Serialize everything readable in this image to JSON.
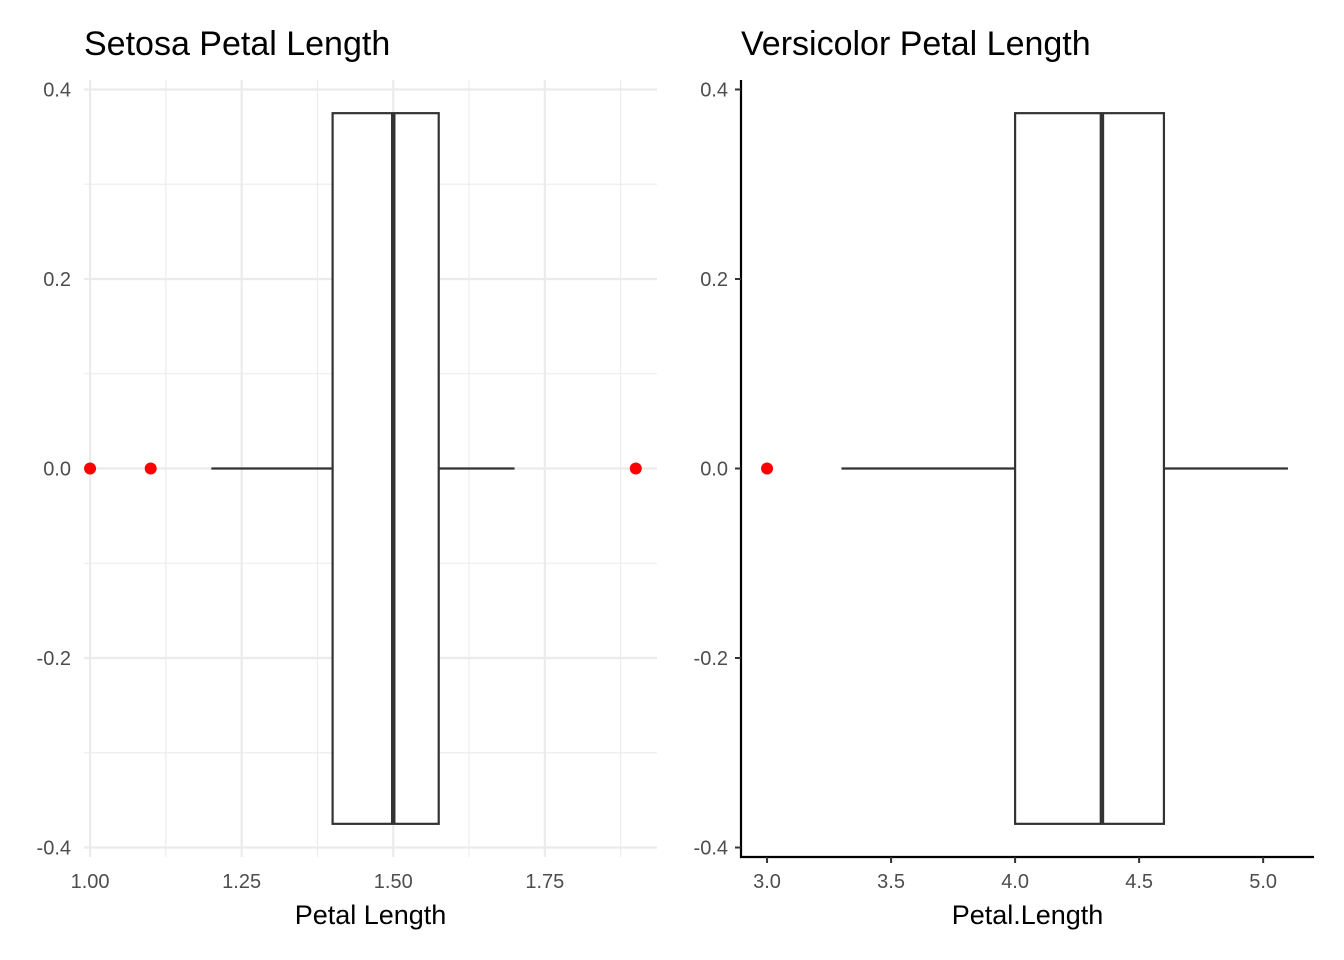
{
  "chart_data": [
    {
      "type": "boxplot",
      "title": "Setosa Petal Length",
      "xlabel": "Petal Length",
      "ylabel": "",
      "theme": "minimal",
      "grid": true,
      "xlim": [
        0.99,
        1.935
      ],
      "ylim": [
        -0.41,
        0.41
      ],
      "x_ticks": [
        1.0,
        1.25,
        1.5,
        1.75
      ],
      "x_tick_labels": [
        "1.00",
        "1.25",
        "1.50",
        "1.75"
      ],
      "y_ticks": [
        0.4,
        0.2,
        0.0,
        -0.2,
        -0.4
      ],
      "y_tick_labels": [
        "0.4",
        "0.2",
        "0.0",
        "-0.2",
        "-0.4"
      ],
      "box": {
        "whisker_low": 1.2,
        "q1": 1.4,
        "median": 1.5,
        "q3": 1.575,
        "whisker_high": 1.7,
        "width_half": 0.375
      },
      "outliers": [
        1.0,
        1.1,
        1.9
      ],
      "outlier_color": "#ff0000",
      "box_color": "#333333"
    },
    {
      "type": "boxplot",
      "title": "Versicolor Petal Length",
      "xlabel": "Petal.Length",
      "ylabel": "",
      "theme": "classic",
      "grid": false,
      "xlim": [
        2.895,
        5.205
      ],
      "ylim": [
        -0.41,
        0.41
      ],
      "x_ticks": [
        3.0,
        3.5,
        4.0,
        4.5,
        5.0
      ],
      "x_tick_labels": [
        "3.0",
        "3.5",
        "4.0",
        "4.5",
        "5.0"
      ],
      "y_ticks": [
        0.4,
        0.2,
        0.0,
        -0.2,
        -0.4
      ],
      "y_tick_labels": [
        "0.4",
        "0.2",
        "0.0",
        "-0.2",
        "-0.4"
      ],
      "box": {
        "whisker_low": 3.3,
        "q1": 4.0,
        "median": 4.35,
        "q3": 4.6,
        "whisker_high": 5.1,
        "width_half": 0.375
      },
      "outliers": [
        3.0
      ],
      "outlier_color": "#ff0000",
      "box_color": "#333333"
    }
  ]
}
